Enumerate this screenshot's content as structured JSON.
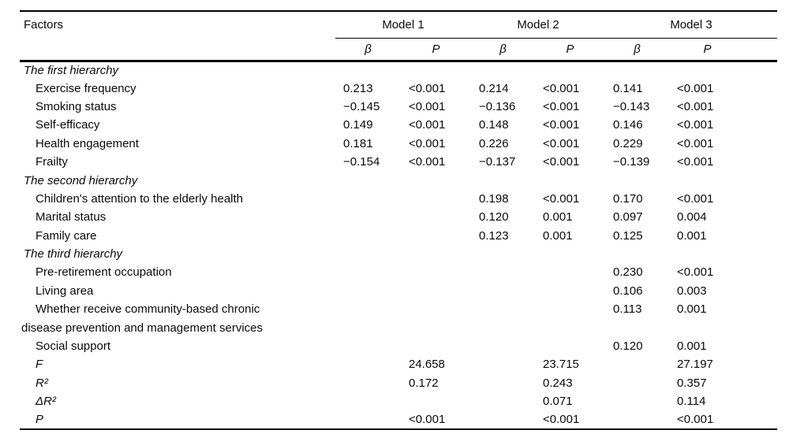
{
  "accent_colors": {
    "rule": "#000000",
    "text": "#0a0a0a",
    "background": "#ffffff"
  },
  "table": {
    "header": {
      "factors": "Factors",
      "models": [
        "Model 1",
        "Model 2",
        "Model 3"
      ],
      "beta": "β",
      "p": "P"
    },
    "rows": [
      {
        "type": "section",
        "label": "The first hierarchy",
        "values": [
          "",
          "",
          "",
          "",
          "",
          ""
        ]
      },
      {
        "type": "item",
        "label": "Exercise frequency",
        "values": [
          "0.213",
          "<0.001",
          "0.214",
          "<0.001",
          "0.141",
          "<0.001"
        ]
      },
      {
        "type": "item",
        "label": "Smoking status",
        "values": [
          "−0.145",
          "<0.001",
          "−0.136",
          "<0.001",
          "−0.143",
          "<0.001"
        ]
      },
      {
        "type": "item",
        "label": "Self-efficacy",
        "values": [
          "0.149",
          "<0.001",
          "0.148",
          "<0.001",
          "0.146",
          "<0.001"
        ]
      },
      {
        "type": "item",
        "label": "Health engagement",
        "values": [
          "0.181",
          "<0.001",
          "0.226",
          "<0.001",
          "0.229",
          "<0.001"
        ]
      },
      {
        "type": "item",
        "label": "Frailty",
        "values": [
          "−0.154",
          "<0.001",
          "−0.137",
          "<0.001",
          "−0.139",
          "<0.001"
        ]
      },
      {
        "type": "section",
        "label": "The second hierarchy",
        "values": [
          "",
          "",
          "",
          "",
          "",
          ""
        ]
      },
      {
        "type": "item",
        "label": "Children's attention to the elderly health",
        "values": [
          "",
          "",
          "0.198",
          "<0.001",
          "0.170",
          "<0.001"
        ]
      },
      {
        "type": "item",
        "label": "Marital status",
        "values": [
          "",
          "",
          "0.120",
          "0.001",
          "0.097",
          "0.004"
        ]
      },
      {
        "type": "item",
        "label": "Family care",
        "values": [
          "",
          "",
          "0.123",
          "0.001",
          "0.125",
          "0.001"
        ]
      },
      {
        "type": "section",
        "label": "The third hierarchy",
        "values": [
          "",
          "",
          "",
          "",
          "",
          ""
        ]
      },
      {
        "type": "item",
        "label": "Pre-retirement occupation",
        "values": [
          "",
          "",
          "",
          "",
          "0.230",
          "<0.001"
        ]
      },
      {
        "type": "item",
        "label": "Living area",
        "values": [
          "",
          "",
          "",
          "",
          "0.106",
          "0.003"
        ]
      },
      {
        "type": "item",
        "label": "Whether receive community-based chronic",
        "values": [
          "",
          "",
          "",
          "",
          "0.113",
          "0.001"
        ]
      },
      {
        "type": "continuation",
        "label": "disease prevention and management services",
        "values": [
          "",
          "",
          "",
          "",
          "",
          ""
        ]
      },
      {
        "type": "item",
        "label": "Social support",
        "values": [
          "",
          "",
          "",
          "",
          "0.120",
          "0.001"
        ]
      },
      {
        "type": "stat",
        "label": "F",
        "values": [
          "",
          "24.658",
          "",
          "23.715",
          "",
          "27.197"
        ]
      },
      {
        "type": "stat",
        "label": "R²",
        "values": [
          "",
          "0.172",
          "",
          "0.243",
          "",
          "0.357"
        ]
      },
      {
        "type": "stat",
        "label": "ΔR²",
        "values": [
          "",
          "",
          "",
          "0.071",
          "",
          "0.114"
        ]
      },
      {
        "type": "stat",
        "label": "P",
        "values": [
          "",
          "<0.001",
          "",
          "<0.001",
          "",
          "<0.001"
        ]
      }
    ]
  }
}
